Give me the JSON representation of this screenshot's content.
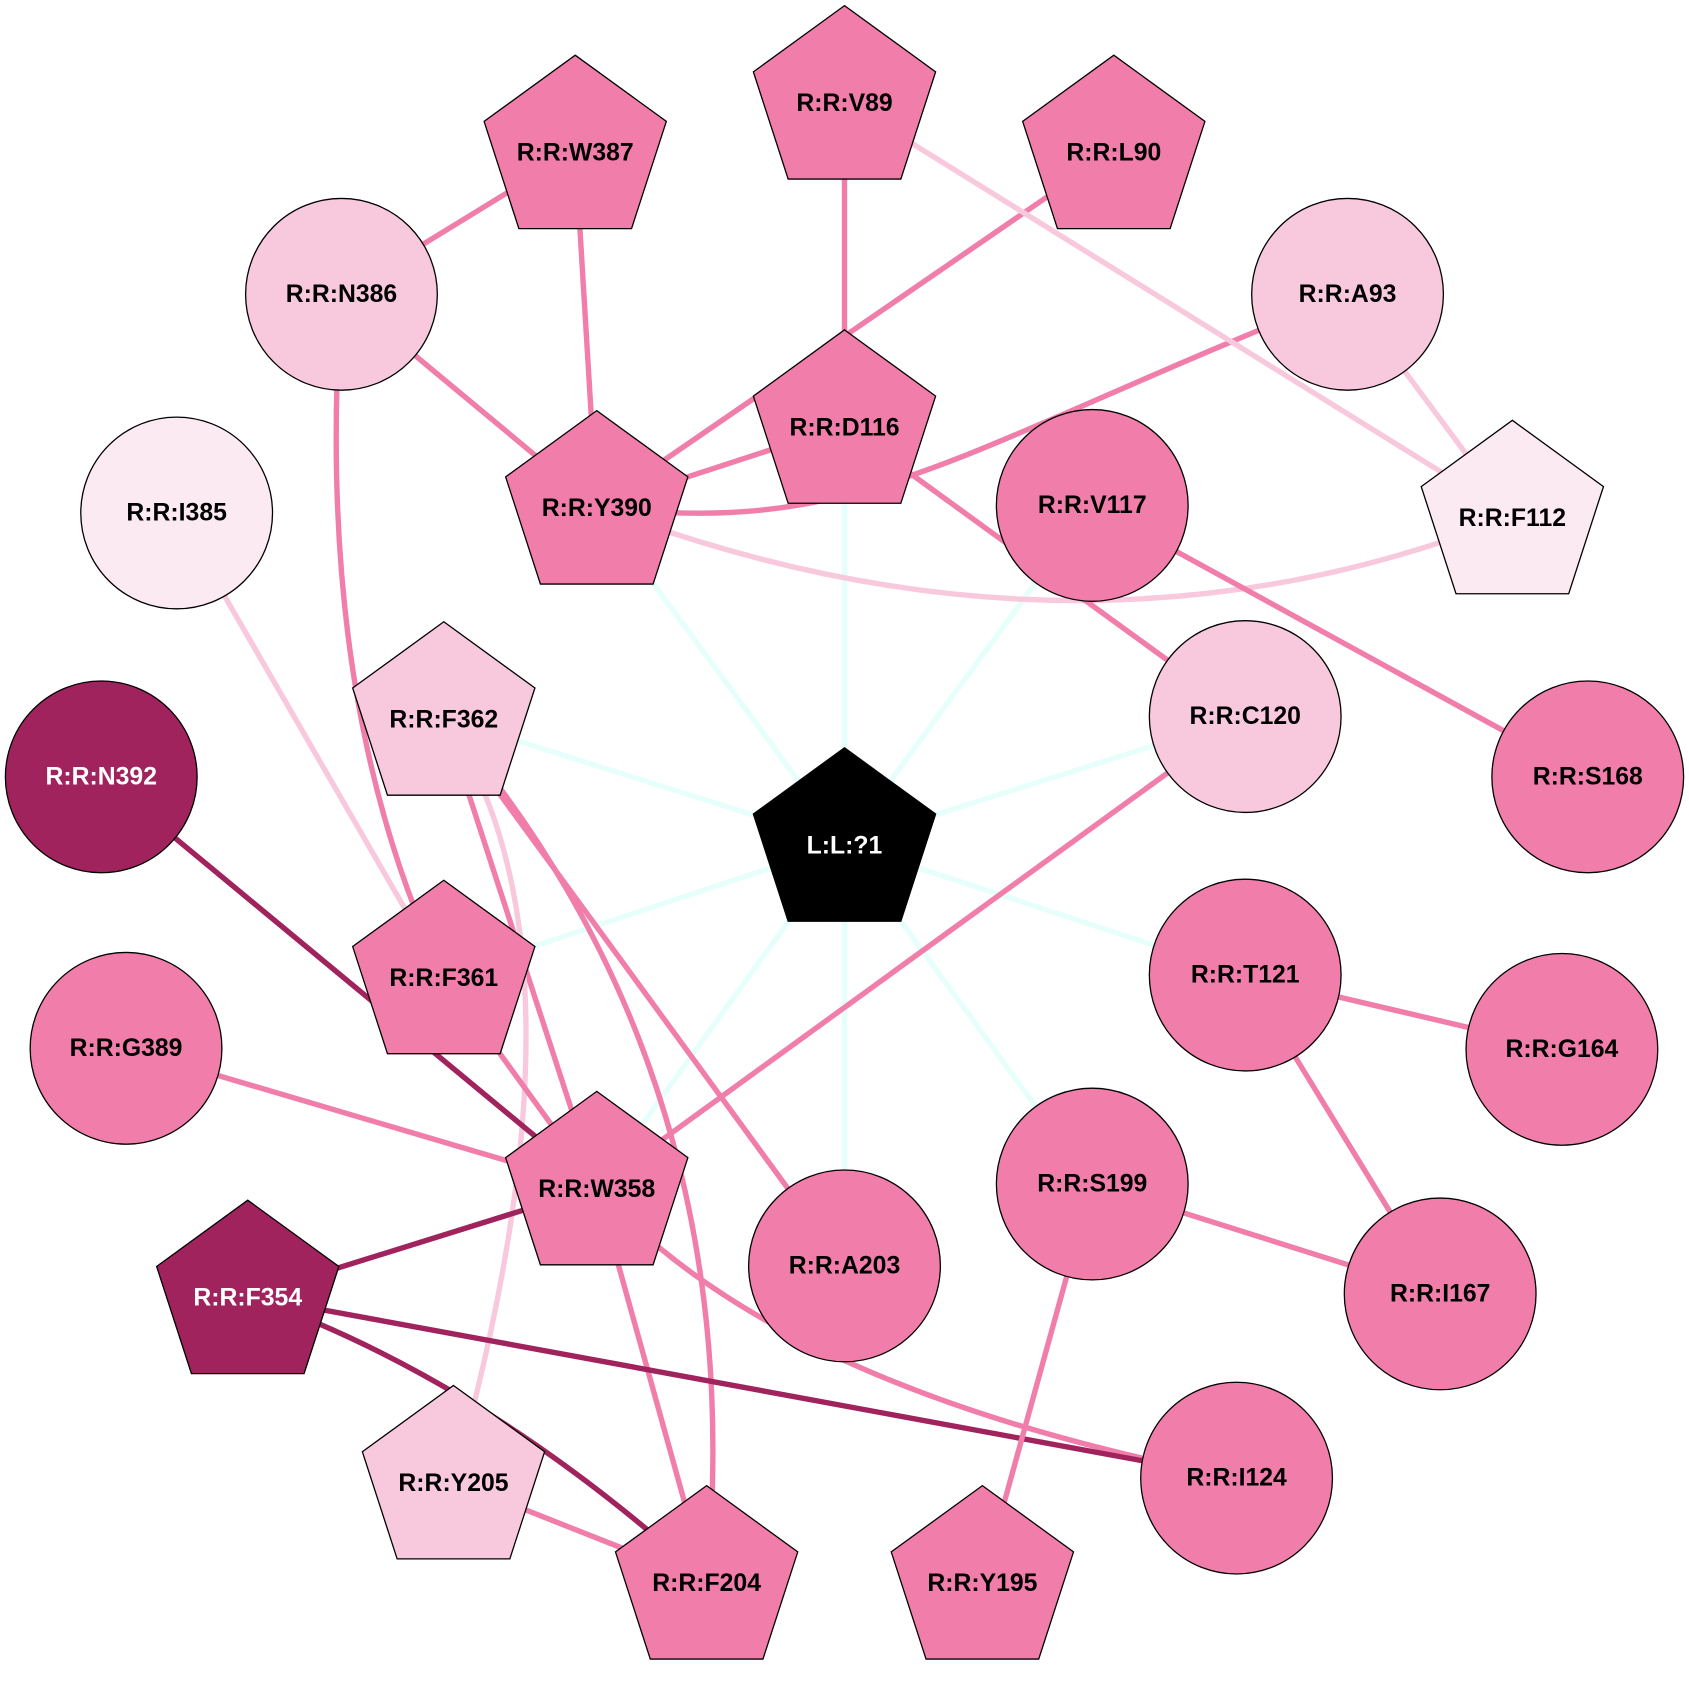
{
  "colors": {
    "ligand": "#000000",
    "mid": "#f07daa",
    "light": "#f8c8dd",
    "pale": "#fbeaf2",
    "dark": "#a0235d",
    "ligand_edge": "#e6fffb"
  },
  "nodes": [
    {
      "id": "L:L:?1",
      "shape": "pentagon",
      "tone": "ligand"
    },
    {
      "id": "R:R:V89",
      "shape": "pentagon",
      "tone": "mid"
    },
    {
      "id": "R:R:L90",
      "shape": "pentagon",
      "tone": "mid"
    },
    {
      "id": "R:R:W387",
      "shape": "pentagon",
      "tone": "mid"
    },
    {
      "id": "R:R:N386",
      "shape": "circle",
      "tone": "light"
    },
    {
      "id": "R:R:A93",
      "shape": "circle",
      "tone": "light"
    },
    {
      "id": "R:R:D116",
      "shape": "pentagon",
      "tone": "mid"
    },
    {
      "id": "R:R:Y390",
      "shape": "pentagon",
      "tone": "mid"
    },
    {
      "id": "R:R:I385",
      "shape": "circle",
      "tone": "pale"
    },
    {
      "id": "R:R:V117",
      "shape": "circle",
      "tone": "mid"
    },
    {
      "id": "R:R:F112",
      "shape": "pentagon",
      "tone": "pale"
    },
    {
      "id": "R:R:F362",
      "shape": "pentagon",
      "tone": "light"
    },
    {
      "id": "R:R:C120",
      "shape": "circle",
      "tone": "light"
    },
    {
      "id": "R:R:N392",
      "shape": "circle",
      "tone": "dark"
    },
    {
      "id": "R:R:S168",
      "shape": "circle",
      "tone": "mid"
    },
    {
      "id": "R:R:F361",
      "shape": "pentagon",
      "tone": "mid"
    },
    {
      "id": "R:R:T121",
      "shape": "circle",
      "tone": "mid"
    },
    {
      "id": "R:R:G389",
      "shape": "circle",
      "tone": "mid"
    },
    {
      "id": "R:R:G164",
      "shape": "circle",
      "tone": "mid"
    },
    {
      "id": "R:R:W358",
      "shape": "pentagon",
      "tone": "mid"
    },
    {
      "id": "R:R:A203",
      "shape": "circle",
      "tone": "mid"
    },
    {
      "id": "R:R:S199",
      "shape": "circle",
      "tone": "mid"
    },
    {
      "id": "R:R:F354",
      "shape": "pentagon",
      "tone": "dark"
    },
    {
      "id": "R:R:I167",
      "shape": "circle",
      "tone": "mid"
    },
    {
      "id": "R:R:Y205",
      "shape": "pentagon",
      "tone": "light"
    },
    {
      "id": "R:R:I124",
      "shape": "circle",
      "tone": "mid"
    },
    {
      "id": "R:R:F204",
      "shape": "pentagon",
      "tone": "mid"
    },
    {
      "id": "R:R:Y195",
      "shape": "pentagon",
      "tone": "mid"
    }
  ],
  "edges": [
    {
      "source": "L:L:?1",
      "target": "R:R:Y390",
      "tone": "ligand_edge"
    },
    {
      "source": "L:L:?1",
      "target": "R:R:D116",
      "tone": "ligand_edge"
    },
    {
      "source": "L:L:?1",
      "target": "R:R:V117",
      "tone": "ligand_edge"
    },
    {
      "source": "L:L:?1",
      "target": "R:R:F362",
      "tone": "ligand_edge"
    },
    {
      "source": "L:L:?1",
      "target": "R:R:C120",
      "tone": "ligand_edge"
    },
    {
      "source": "L:L:?1",
      "target": "R:R:F361",
      "tone": "ligand_edge"
    },
    {
      "source": "L:L:?1",
      "target": "R:R:T121",
      "tone": "ligand_edge"
    },
    {
      "source": "L:L:?1",
      "target": "R:R:W358",
      "tone": "ligand_edge"
    },
    {
      "source": "L:L:?1",
      "target": "R:R:A203",
      "tone": "ligand_edge"
    },
    {
      "source": "L:L:?1",
      "target": "R:R:S199",
      "tone": "ligand_edge"
    },
    {
      "source": "R:R:N386",
      "target": "R:R:W387",
      "tone": "mid"
    },
    {
      "source": "R:R:W387",
      "target": "R:R:Y390",
      "tone": "mid"
    },
    {
      "source": "R:R:N386",
      "target": "R:R:Y390",
      "tone": "mid"
    },
    {
      "source": "R:R:L90",
      "target": "R:R:Y390",
      "tone": "mid"
    },
    {
      "source": "R:R:V89",
      "target": "R:R:D116",
      "tone": "mid"
    },
    {
      "source": "R:R:Y390",
      "target": "R:R:D116",
      "tone": "mid"
    },
    {
      "source": "R:R:Y390",
      "target": "R:R:A93",
      "tone": "mid"
    },
    {
      "source": "R:R:Y390",
      "target": "R:R:F112",
      "tone": "light"
    },
    {
      "source": "R:R:V89",
      "target": "R:R:F112",
      "tone": "light"
    },
    {
      "source": "R:R:A93",
      "target": "R:R:F112",
      "tone": "light"
    },
    {
      "source": "R:R:D116",
      "target": "R:R:C120",
      "tone": "mid"
    },
    {
      "source": "R:R:V117",
      "target": "R:R:S168",
      "tone": "mid"
    },
    {
      "source": "R:R:N386",
      "target": "R:R:F361",
      "tone": "mid"
    },
    {
      "source": "R:R:I385",
      "target": "R:R:F361",
      "tone": "light"
    },
    {
      "source": "R:R:F362",
      "target": "R:R:W358",
      "tone": "mid"
    },
    {
      "source": "R:R:F362",
      "target": "R:R:A203",
      "tone": "mid"
    },
    {
      "source": "R:R:F362",
      "target": "R:R:F204",
      "tone": "mid"
    },
    {
      "source": "R:R:F362",
      "target": "R:R:Y205",
      "tone": "light"
    },
    {
      "source": "R:R:N392",
      "target": "R:R:W358",
      "tone": "dark"
    },
    {
      "source": "R:R:F361",
      "target": "R:R:W358",
      "tone": "mid"
    },
    {
      "source": "R:R:G389",
      "target": "R:R:W358",
      "tone": "mid"
    },
    {
      "source": "R:R:C120",
      "target": "R:R:W358",
      "tone": "mid"
    },
    {
      "source": "R:R:W358",
      "target": "R:R:F204",
      "tone": "mid"
    },
    {
      "source": "R:R:W358",
      "target": "R:R:I124",
      "tone": "mid"
    },
    {
      "source": "R:R:F354",
      "target": "R:R:W358",
      "tone": "dark"
    },
    {
      "source": "R:R:F354",
      "target": "R:R:I124",
      "tone": "dark"
    },
    {
      "source": "R:R:F354",
      "target": "R:R:F204",
      "tone": "dark"
    },
    {
      "source": "R:R:Y205",
      "target": "R:R:F204",
      "tone": "mid"
    },
    {
      "source": "R:R:T121",
      "target": "R:R:G164",
      "tone": "mid"
    },
    {
      "source": "R:R:T121",
      "target": "R:R:I167",
      "tone": "mid"
    },
    {
      "source": "R:R:S199",
      "target": "R:R:I167",
      "tone": "mid"
    },
    {
      "source": "R:R:S199",
      "target": "R:R:Y195",
      "tone": "mid"
    }
  ]
}
